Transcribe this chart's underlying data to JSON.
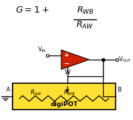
{
  "box_color": "#FFE033",
  "box_edge_color": "#000000",
  "op_amp_color": "#CC2200",
  "op_amp_edge_color": "#000000",
  "text_color": "#000000",
  "wire_color": "#000000",
  "background_color": "#ffffff",
  "label_digiPOT": "digiPOT",
  "label_A": "A",
  "label_B": "B",
  "label_W": "W",
  "fig_w": 1.91,
  "fig_h": 1.73,
  "dpi": 100
}
